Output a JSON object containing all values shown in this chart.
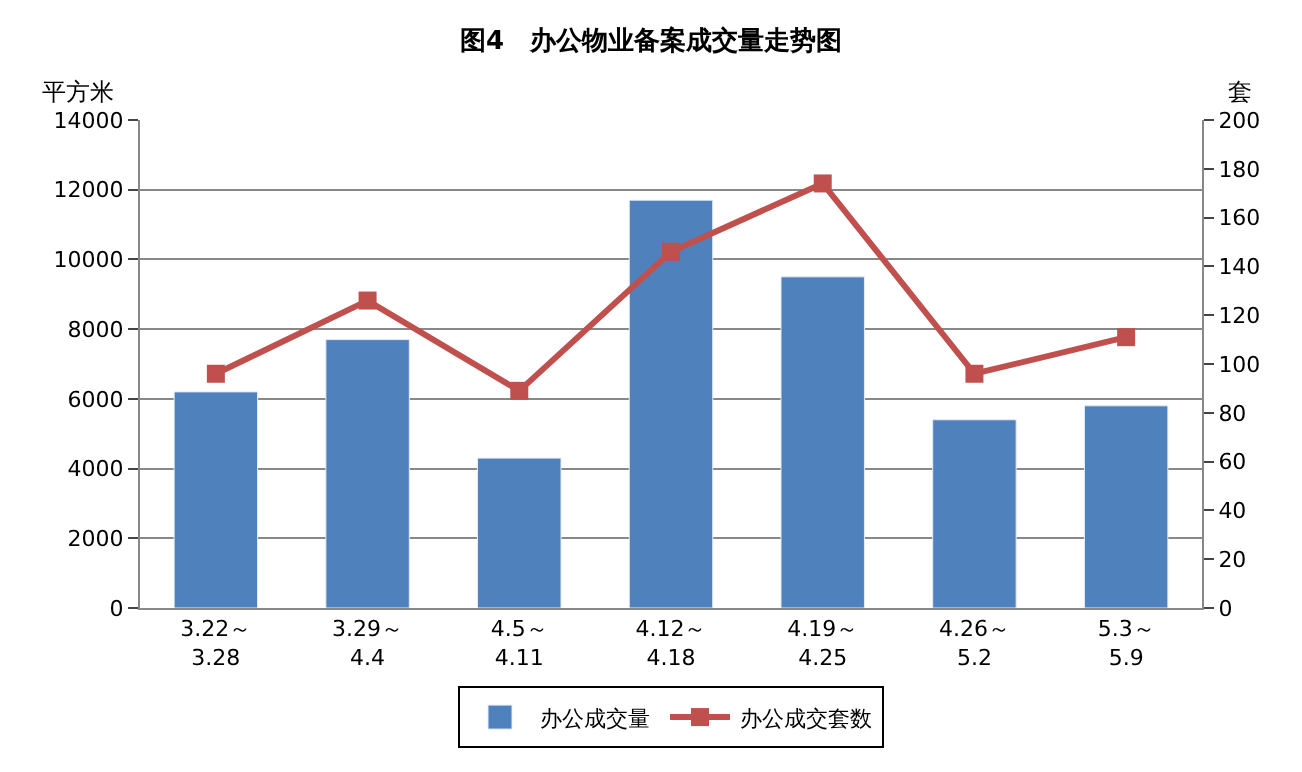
{
  "chart_data": {
    "type": "bar",
    "title": "图4　办公物业备案成交量走势图",
    "ylabel": "平方米",
    "y2label": "套",
    "categories": [
      "3.22～\n3.28",
      "3.29～\n4.4",
      "4.5～\n4.11",
      "4.12～\n4.18",
      "4.19～\n4.25",
      "4.26～\n5.2",
      "5.3～\n5.9"
    ],
    "series": [
      {
        "name": "办公成交量",
        "color": "#4f81bd",
        "values": [
          6200,
          7700,
          4300,
          11700,
          9500,
          5400,
          5800
        ]
      },
      {
        "name": "办公成交套数",
        "type": "line",
        "axis": "y2",
        "color": "#c0504d",
        "marker": "square",
        "values": [
          96,
          126,
          89,
          146,
          174,
          96,
          111
        ]
      }
    ],
    "ylim": [
      0,
      14000
    ],
    "yticks": [
      0,
      2000,
      4000,
      6000,
      8000,
      10000,
      12000,
      14000
    ],
    "y2lim": [
      0,
      200
    ],
    "y2ticks": [
      0,
      20,
      40,
      60,
      80,
      100,
      120,
      140,
      160,
      180,
      200
    ],
    "grid": "y",
    "legend": "bottom"
  }
}
